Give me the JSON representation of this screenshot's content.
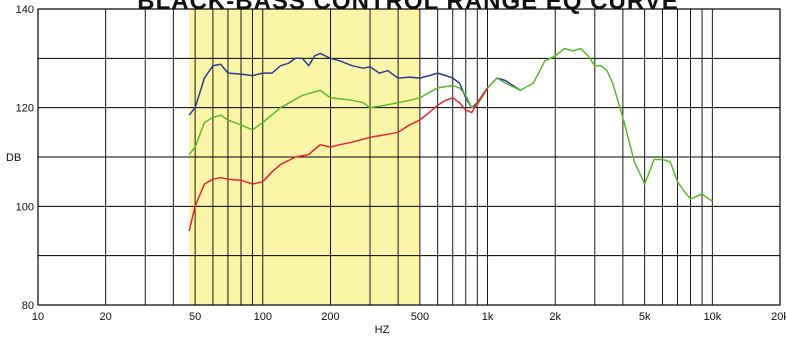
{
  "chart_data": {
    "type": "line",
    "title": "BLACK-BASS CONTROL RANGE EQ CURVE",
    "xlabel": "HZ",
    "ylabel": "DB",
    "x_scale": "log",
    "xlim": [
      10,
      20000
    ],
    "ylim": [
      80,
      140
    ],
    "x_ticks": [
      10,
      20,
      50,
      100,
      200,
      500,
      1000,
      2000,
      5000,
      10000,
      20000
    ],
    "x_tick_labels": [
      "10",
      "20",
      "50",
      "100",
      "200",
      "500",
      "1k",
      "2k",
      "5k",
      "10k",
      "20k"
    ],
    "y_ticks": [
      80,
      100,
      120,
      140
    ],
    "y_tick_labels": [
      "80",
      "100",
      "120",
      "140"
    ],
    "grid": true,
    "highlight_band": {
      "x": [
        47,
        500
      ],
      "color": "#fbf6a7"
    },
    "colors": {
      "blue": "#2a3b95",
      "green": "#5cb82f",
      "red": "#e3262f",
      "grid": "#000000",
      "band": "#fbf6a7"
    },
    "series": [
      {
        "color": "#2a3b95",
        "x": [
          47,
          50,
          55,
          60,
          65,
          70,
          80,
          90,
          100,
          110,
          120,
          130,
          140,
          150,
          160,
          170,
          180,
          200,
          220,
          250,
          280,
          300,
          330,
          360,
          400,
          450,
          500,
          550,
          600,
          650,
          700,
          750,
          800,
          850,
          900,
          1000,
          1100,
          1200,
          1400
        ],
        "y": [
          118.5,
          120,
          126,
          128.5,
          128.8,
          127,
          126.8,
          126.5,
          127,
          127,
          128.5,
          129,
          130,
          130,
          128.5,
          130.5,
          131,
          130,
          129.5,
          128.5,
          128,
          128.3,
          127,
          127.5,
          126,
          126.2,
          126,
          126.5,
          127,
          126.5,
          126,
          125,
          122,
          120,
          121,
          124,
          126,
          125.5,
          123.5
        ]
      },
      {
        "color": "#5cb82f",
        "x": [
          47,
          50,
          55,
          60,
          65,
          70,
          80,
          90,
          100,
          120,
          150,
          180,
          200,
          250,
          280,
          300,
          350,
          400,
          450,
          500,
          600,
          700,
          750,
          800,
          850,
          900,
          1000,
          1100,
          1200,
          1400,
          1600,
          1800,
          2000,
          2200,
          2400,
          2600,
          2800,
          3000,
          3200,
          3400,
          3600,
          4000,
          4500,
          5000,
          5200,
          5500,
          6000,
          6500,
          7000,
          7500,
          8000,
          9000,
          10000
        ],
        "y": [
          110.5,
          112,
          117,
          118,
          118.5,
          117.5,
          116.5,
          115.5,
          117,
          120,
          122.5,
          123.5,
          122,
          121.5,
          121,
          120,
          120.5,
          121,
          121.5,
          122,
          124,
          124.5,
          124,
          122.5,
          120,
          120.5,
          124,
          126,
          125,
          123.5,
          125,
          129.5,
          130.5,
          132,
          131.5,
          132,
          130.5,
          128.5,
          128.5,
          127.5,
          125,
          118,
          109,
          104.5,
          106.5,
          109.5,
          109.5,
          109,
          105,
          103,
          101.5,
          102.5,
          101
        ]
      },
      {
        "color": "#e3262f",
        "x": [
          47,
          50,
          55,
          60,
          65,
          70,
          80,
          90,
          100,
          110,
          120,
          140,
          160,
          180,
          200,
          220,
          250,
          300,
          350,
          400,
          450,
          500,
          550,
          600,
          650,
          700,
          750,
          800,
          850,
          900,
          1000
        ],
        "y": [
          95,
          100,
          104.5,
          105.5,
          105.8,
          105.5,
          105.3,
          104.5,
          105,
          107,
          108.5,
          110,
          110.5,
          112.5,
          112,
          112.5,
          113,
          114,
          114.5,
          115,
          116.5,
          117.5,
          119,
          120.5,
          121.5,
          122,
          121,
          119.5,
          119,
          121,
          124
        ]
      }
    ]
  }
}
